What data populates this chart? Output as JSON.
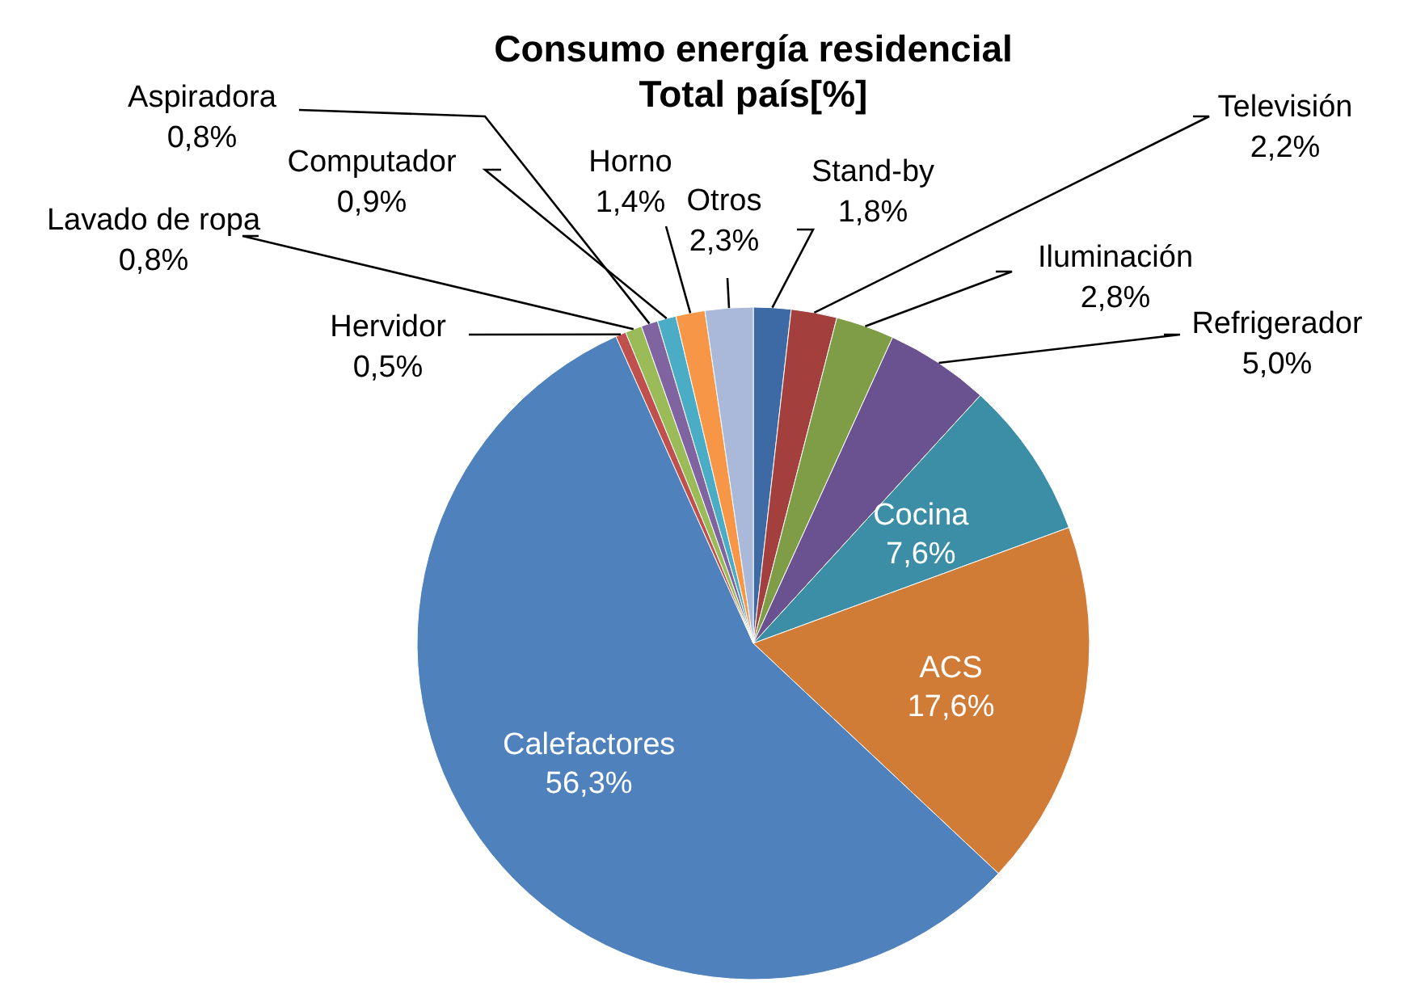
{
  "chart_data": {
    "type": "pie",
    "title": "Consumo energía residencial",
    "subtitle": "Total país[%]",
    "categories": [
      "Stand-by",
      "Televisión",
      "Iluminación",
      "Refrigerador",
      "Cocina",
      "ACS",
      "Calefactores",
      "Hervidor",
      "Lavado de ropa",
      "Aspiradora",
      "Computador",
      "Horno",
      "Otros"
    ],
    "values": [
      1.8,
      2.2,
      2.8,
      5.0,
      7.6,
      17.6,
      56.3,
      0.5,
      0.8,
      0.8,
      0.9,
      1.4,
      2.3
    ],
    "value_labels": [
      "1,8%",
      "2,2%",
      "2,8%",
      "5,0%",
      "7,6%",
      "17,6%",
      "56,3%",
      "0,5%",
      "0,8%",
      "0,8%",
      "0,9%",
      "1,4%",
      "2,3%"
    ],
    "colors": [
      "#3d6aa5",
      "#a3403d",
      "#7f9c47",
      "#6a5190",
      "#3b8ea5",
      "#d17c36",
      "#4f81bd",
      "#c0504d",
      "#9bbb59",
      "#8064a2",
      "#4bacc6",
      "#f79646",
      "#aab9d9"
    ]
  }
}
